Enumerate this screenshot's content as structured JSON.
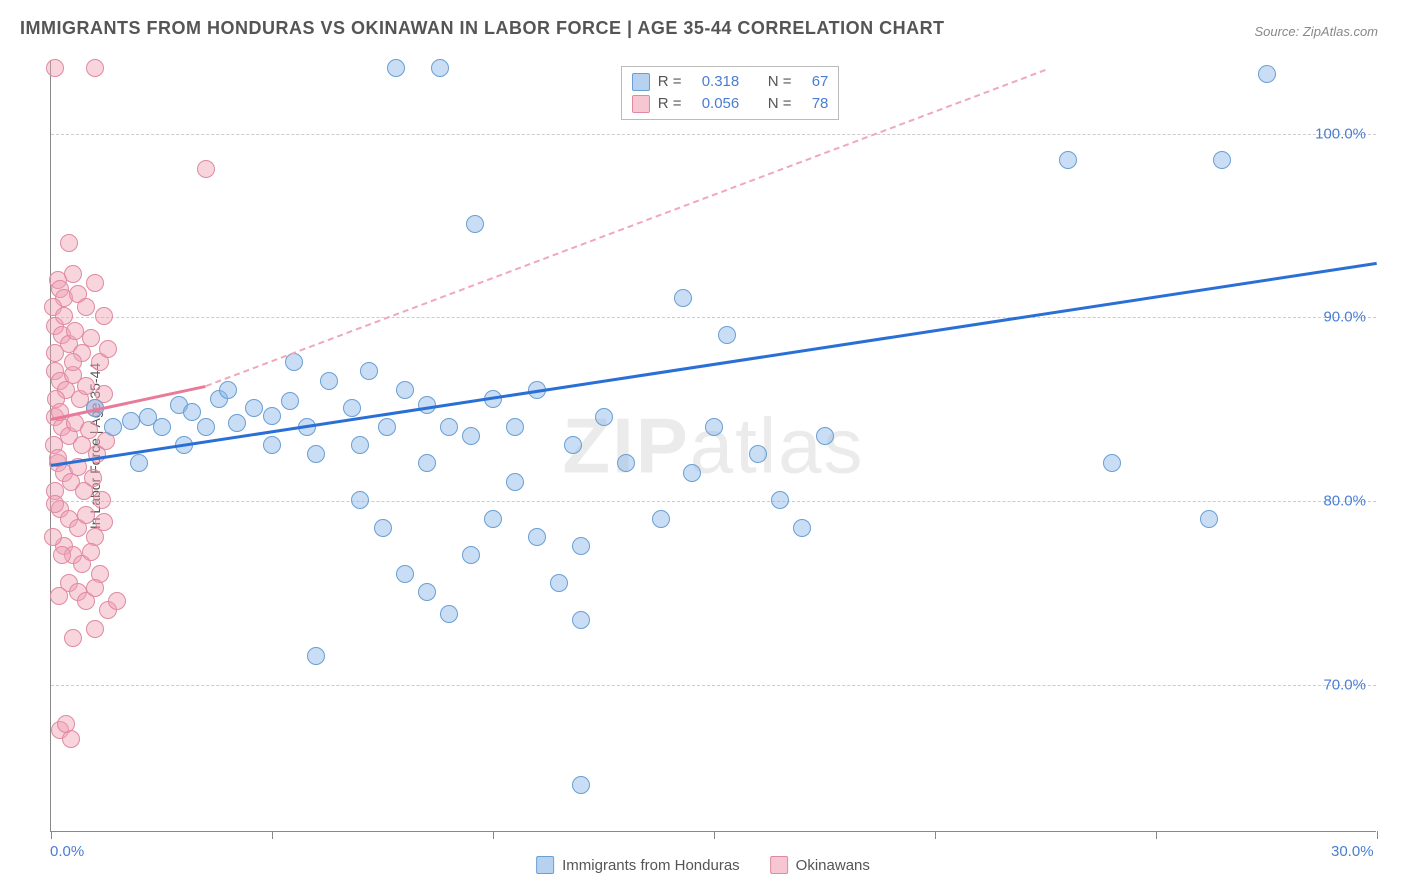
{
  "title": "IMMIGRANTS FROM HONDURAS VS OKINAWAN IN LABOR FORCE | AGE 35-44 CORRELATION CHART",
  "source": "Source: ZipAtlas.com",
  "ylabel": "In Labor Force | Age 35-44",
  "watermark_a": "ZIP",
  "watermark_b": "atlas",
  "chart": {
    "type": "scatter",
    "xlim": [
      0,
      30
    ],
    "ylim": [
      62,
      104
    ],
    "x_ticks": [
      0,
      5,
      10,
      15,
      20,
      25,
      30
    ],
    "x_tick_labels": {
      "0": "0.0%",
      "30": "30.0%"
    },
    "y_gridlines": [
      70,
      80,
      90,
      100
    ],
    "y_tick_labels": [
      "70.0%",
      "80.0%",
      "90.0%",
      "100.0%"
    ],
    "grid_color": "#cccccc",
    "background_color": "#ffffff",
    "axis_color": "#888888",
    "tick_label_color": "#4a7dd4",
    "point_radius": 9,
    "series": [
      {
        "name": "Immigrants from Honduras",
        "color_fill": "rgba(135,180,230,0.45)",
        "color_stroke": "#6a9fd4",
        "class": "blue",
        "R": "0.318",
        "N": "67",
        "trend": {
          "x0": 0,
          "y0": 82.0,
          "x1": 30,
          "y1": 93.0,
          "color": "#2a6fd6",
          "width": 3,
          "dash": false
        },
        "points": [
          [
            7.8,
            103.5
          ],
          [
            8.8,
            103.5
          ],
          [
            27.5,
            103.2
          ],
          [
            23.0,
            98.5
          ],
          [
            26.5,
            98.5
          ],
          [
            9.6,
            95.0
          ],
          [
            14.3,
            91.0
          ],
          [
            15.3,
            89.0
          ],
          [
            24.0,
            82.0
          ],
          [
            26.2,
            79.0
          ],
          [
            12.0,
            64.5
          ],
          [
            1.0,
            85.0
          ],
          [
            1.4,
            84.0
          ],
          [
            1.8,
            84.3
          ],
          [
            2.2,
            84.5
          ],
          [
            2.5,
            84.0
          ],
          [
            2.9,
            85.2
          ],
          [
            3.2,
            84.8
          ],
          [
            3.5,
            84.0
          ],
          [
            3.8,
            85.5
          ],
          [
            4.2,
            84.2
          ],
          [
            4.6,
            85.0
          ],
          [
            5.0,
            84.6
          ],
          [
            5.4,
            85.4
          ],
          [
            5.8,
            84.0
          ],
          [
            6.3,
            86.5
          ],
          [
            6.8,
            85.0
          ],
          [
            7.2,
            87.0
          ],
          [
            7.6,
            84.0
          ],
          [
            8.0,
            86.0
          ],
          [
            8.5,
            85.2
          ],
          [
            9.0,
            84.0
          ],
          [
            5.0,
            83.0
          ],
          [
            6.0,
            82.5
          ],
          [
            7.0,
            83.0
          ],
          [
            8.5,
            82.0
          ],
          [
            9.5,
            83.5
          ],
          [
            10.5,
            84.0
          ],
          [
            7.0,
            80.0
          ],
          [
            7.5,
            78.5
          ],
          [
            8.0,
            76.0
          ],
          [
            8.5,
            75.0
          ],
          [
            9.0,
            73.8
          ],
          [
            9.5,
            77.0
          ],
          [
            10.0,
            79.0
          ],
          [
            10.5,
            81.0
          ],
          [
            11.0,
            78.0
          ],
          [
            11.5,
            75.5
          ],
          [
            12.0,
            77.5
          ],
          [
            10.0,
            85.5
          ],
          [
            11.0,
            86.0
          ],
          [
            11.8,
            83.0
          ],
          [
            12.5,
            84.5
          ],
          [
            13.0,
            82.0
          ],
          [
            13.8,
            79.0
          ],
          [
            14.5,
            81.5
          ],
          [
            15.0,
            84.0
          ],
          [
            16.0,
            82.5
          ],
          [
            16.5,
            80.0
          ],
          [
            17.0,
            78.5
          ],
          [
            17.5,
            83.5
          ],
          [
            12.0,
            73.5
          ],
          [
            6.0,
            71.5
          ],
          [
            5.5,
            87.5
          ],
          [
            4.0,
            86.0
          ],
          [
            3.0,
            83.0
          ],
          [
            2.0,
            82.0
          ]
        ]
      },
      {
        "name": "Okinawans",
        "color_fill": "rgba(240,160,180,0.45)",
        "color_stroke": "#e08aa0",
        "class": "pink",
        "R": "0.056",
        "N": "78",
        "trend_solid": {
          "x0": 0,
          "y0": 84.5,
          "x1": 3.5,
          "y1": 86.3,
          "color": "#e87a9a",
          "width": 3
        },
        "trend_dash": {
          "x0": 3.5,
          "y0": 86.3,
          "x1": 22.5,
          "y1": 103.5,
          "color": "#f0a8bb",
          "width": 2
        },
        "points": [
          [
            1.0,
            103.5
          ],
          [
            0.1,
            103.5
          ],
          [
            3.5,
            98.0
          ],
          [
            0.4,
            94.0
          ],
          [
            0.15,
            92.0
          ],
          [
            0.2,
            91.5
          ],
          [
            0.3,
            91.0
          ],
          [
            0.5,
            92.3
          ],
          [
            0.6,
            91.2
          ],
          [
            0.8,
            90.5
          ],
          [
            1.0,
            91.8
          ],
          [
            1.2,
            90.0
          ],
          [
            0.1,
            89.5
          ],
          [
            0.25,
            89.0
          ],
          [
            0.4,
            88.5
          ],
          [
            0.55,
            89.2
          ],
          [
            0.7,
            88.0
          ],
          [
            0.9,
            88.8
          ],
          [
            1.1,
            87.5
          ],
          [
            1.3,
            88.2
          ],
          [
            0.1,
            87.0
          ],
          [
            0.2,
            86.5
          ],
          [
            0.35,
            86.0
          ],
          [
            0.5,
            86.8
          ],
          [
            0.65,
            85.5
          ],
          [
            0.8,
            86.2
          ],
          [
            1.0,
            85.0
          ],
          [
            1.2,
            85.8
          ],
          [
            0.1,
            84.5
          ],
          [
            0.25,
            84.0
          ],
          [
            0.4,
            83.5
          ],
          [
            0.55,
            84.2
          ],
          [
            0.7,
            83.0
          ],
          [
            0.85,
            83.8
          ],
          [
            1.05,
            82.5
          ],
          [
            1.25,
            83.2
          ],
          [
            0.15,
            82.0
          ],
          [
            0.3,
            81.5
          ],
          [
            0.45,
            81.0
          ],
          [
            0.6,
            81.8
          ],
          [
            0.75,
            80.5
          ],
          [
            0.95,
            81.2
          ],
          [
            1.15,
            80.0
          ],
          [
            0.2,
            79.5
          ],
          [
            0.4,
            79.0
          ],
          [
            0.6,
            78.5
          ],
          [
            0.8,
            79.2
          ],
          [
            1.0,
            78.0
          ],
          [
            1.2,
            78.8
          ],
          [
            0.3,
            77.5
          ],
          [
            0.5,
            77.0
          ],
          [
            0.7,
            76.5
          ],
          [
            0.9,
            77.2
          ],
          [
            1.1,
            76.0
          ],
          [
            0.4,
            75.5
          ],
          [
            0.6,
            75.0
          ],
          [
            0.8,
            74.5
          ],
          [
            1.0,
            75.2
          ],
          [
            1.3,
            74.0
          ],
          [
            1.0,
            73.0
          ],
          [
            1.5,
            74.5
          ],
          [
            0.5,
            72.5
          ],
          [
            0.2,
            67.5
          ],
          [
            0.45,
            67.0
          ],
          [
            0.35,
            67.8
          ],
          [
            0.05,
            90.5
          ],
          [
            0.08,
            88.0
          ],
          [
            0.12,
            85.5
          ],
          [
            0.06,
            83.0
          ],
          [
            0.1,
            80.5
          ],
          [
            0.05,
            78.0
          ],
          [
            0.3,
            90.0
          ],
          [
            0.5,
            87.5
          ],
          [
            0.2,
            84.8
          ],
          [
            0.15,
            82.3
          ],
          [
            0.1,
            79.8
          ],
          [
            0.25,
            77.0
          ],
          [
            0.18,
            74.8
          ]
        ]
      }
    ]
  },
  "stats_legend": {
    "rows": [
      {
        "class": "blue",
        "R_label": "R =",
        "R": "0.318",
        "N_label": "N =",
        "N": "67"
      },
      {
        "class": "pink",
        "R_label": "R =",
        "R": "0.056",
        "N_label": "N =",
        "N": "78"
      }
    ]
  },
  "bottom_legend": [
    {
      "class": "blue",
      "label": "Immigrants from Honduras"
    },
    {
      "class": "pink",
      "label": "Okinawans"
    }
  ]
}
